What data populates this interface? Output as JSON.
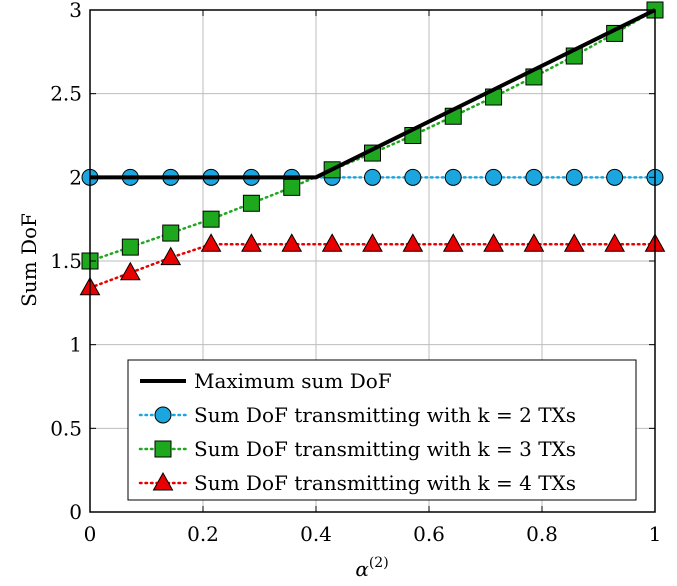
{
  "chart_data": {
    "type": "line",
    "xlabel": "α",
    "xlabel_superscript": "(2)",
    "ylabel": "Sum DoF",
    "xlim": [
      0,
      1
    ],
    "ylim": [
      0,
      3
    ],
    "x_ticks": [
      "0",
      "0.2",
      "0.4",
      "0.6",
      "0.8",
      "1"
    ],
    "y_ticks": [
      "0",
      "0.5",
      "1",
      "1.5",
      "2",
      "2.5",
      "3"
    ],
    "grid": true,
    "legend_position": "bottom-right",
    "series": [
      {
        "name": "Maximum sum DoF",
        "style": "solid",
        "marker": "none",
        "color": "#000000",
        "x": [
          0,
          0.4,
          1
        ],
        "y": [
          2,
          2,
          3
        ]
      },
      {
        "name": "Sum DoF transmitting with k = 2 TXs",
        "style": "dotted",
        "marker": "circle",
        "color": "#1ca6e0",
        "x": [
          0,
          0.0714,
          0.1429,
          0.2143,
          0.2857,
          0.3571,
          0.4286,
          0.5,
          0.5714,
          0.6429,
          0.7143,
          0.7857,
          0.8571,
          0.9286,
          1
        ],
        "y": [
          2,
          2,
          2,
          2,
          2,
          2,
          2,
          2,
          2,
          2,
          2,
          2,
          2,
          2,
          2
        ]
      },
      {
        "name": "Sum DoF transmitting with k = 3 TXs",
        "style": "dotted",
        "marker": "square",
        "color": "#1ea81e",
        "x": [
          0,
          0.0714,
          0.1429,
          0.2143,
          0.2857,
          0.3571,
          0.4286,
          0.5,
          0.5714,
          0.6429,
          0.7143,
          0.7857,
          0.8571,
          0.9286,
          1
        ],
        "y": [
          1.5,
          1.583,
          1.667,
          1.75,
          1.845,
          1.94,
          2.045,
          2.145,
          2.25,
          2.365,
          2.48,
          2.6,
          2.725,
          2.86,
          3
        ]
      },
      {
        "name": "Sum DoF transmitting with k = 4 TXs",
        "style": "dotted",
        "marker": "triangle",
        "color": "#e80000",
        "x": [
          0,
          0.0714,
          0.1429,
          0.2143,
          0.2857,
          0.3571,
          0.4286,
          0.5,
          0.5714,
          0.6429,
          0.7143,
          0.7857,
          0.8571,
          0.9286,
          1
        ],
        "y": [
          1.34,
          1.43,
          1.52,
          1.6,
          1.6,
          1.6,
          1.6,
          1.6,
          1.6,
          1.6,
          1.6,
          1.6,
          1.6,
          1.6,
          1.6
        ]
      }
    ]
  }
}
